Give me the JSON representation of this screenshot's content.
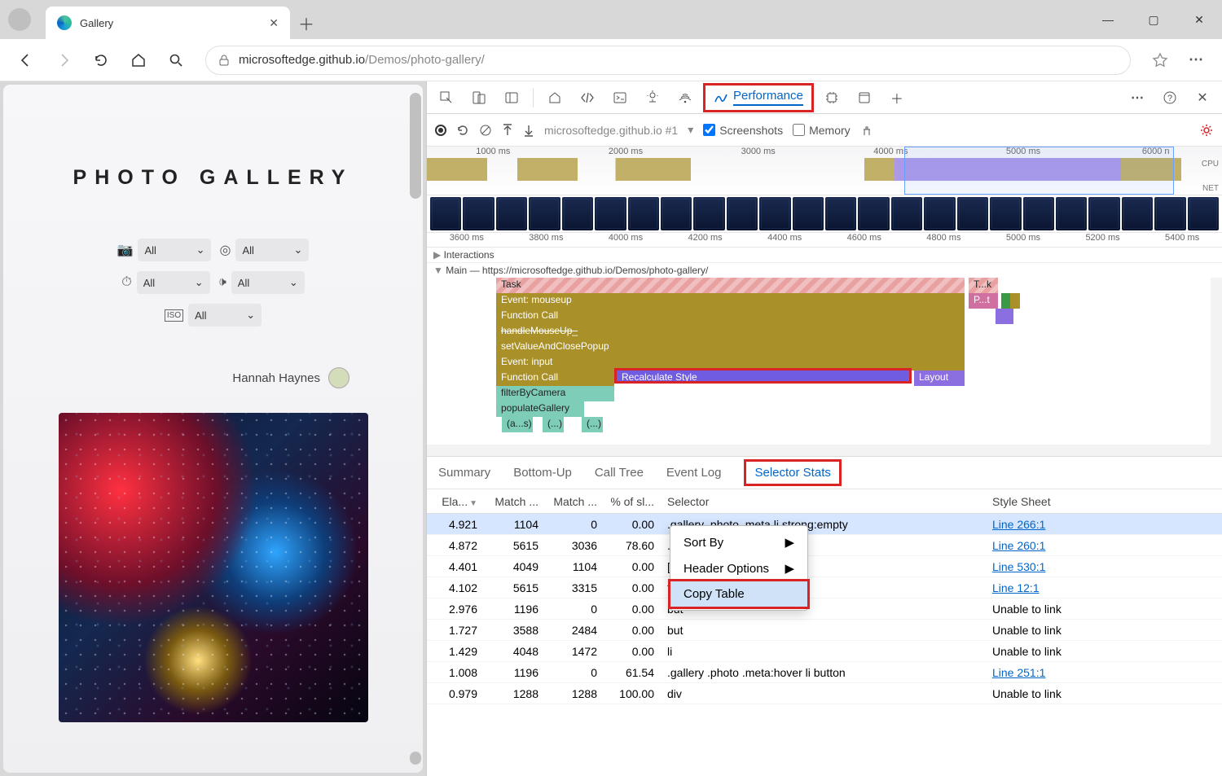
{
  "window": {
    "tab_title": "Gallery"
  },
  "addr": {
    "host": "microsoftedge.github.io",
    "path": "/Demos/photo-gallery/"
  },
  "page": {
    "title": "PHOTO GALLERY",
    "filters": [
      "All",
      "All",
      "All",
      "All",
      "All"
    ],
    "user": "Hannah Haynes"
  },
  "devtools": {
    "active_tab": "Performance",
    "perf_bar": {
      "context": "microsoftedge.github.io #1",
      "screenshots": "Screenshots",
      "memory": "Memory"
    },
    "overview_ticks": [
      "1000 ms",
      "2000 ms",
      "3000 ms",
      "4000 ms",
      "5000 ms",
      "6000 n"
    ],
    "ruler_ticks": [
      "3600 ms",
      "3800 ms",
      "4000 ms",
      "4200 ms",
      "4400 ms",
      "4600 ms",
      "4800 ms",
      "5000 ms",
      "5200 ms",
      "5400 ms"
    ],
    "interactions": "Interactions",
    "main_label": "Main — https://microsoftedge.github.io/Demos/photo-gallery/",
    "flame": {
      "task": "Task",
      "mouseup": "Event: mouseup",
      "fcall": "Function Call",
      "handle": "handleMouseUp_",
      "setval": "setValueAndClosePopup",
      "input": "Event: input",
      "fcall2": "Function Call",
      "recalc": "Recalculate Style",
      "layout": "Layout",
      "filter": "filterByCamera",
      "populate": "populateGallery",
      "anon1": "(a...s)",
      "anon2": "(...)",
      "anon3": "(...)",
      "task2": "T...k",
      "p2": "P...t"
    },
    "detail_tabs": [
      "Summary",
      "Bottom-Up",
      "Call Tree",
      "Event Log",
      "Selector Stats"
    ],
    "stats_headers": {
      "elapsed": "Ela...",
      "match_a": "Match ...",
      "match_c": "Match ...",
      "pct": "% of sl...",
      "selector": "Selector",
      "sheet": "Style Sheet"
    },
    "stats_rows": [
      {
        "elapsed": "4.921",
        "ma": "1104",
        "mc": "0",
        "pct": "0.00",
        "sel": ".gallery .photo .meta li strong:empty",
        "sheet": "Line 266:1",
        "link": true,
        "selected": true
      },
      {
        "elapsed": "4.872",
        "ma": "5615",
        "mc": "3036",
        "pct": "78.60",
        "sel": ".ga",
        "sheet": "Line 260:1",
        "link": true
      },
      {
        "elapsed": "4.401",
        "ma": "4049",
        "mc": "1104",
        "pct": "0.00",
        "sel": "[cla",
        "sheet": "Line 530:1",
        "link": true
      },
      {
        "elapsed": "4.102",
        "ma": "5615",
        "mc": "3315",
        "pct": "0.00",
        "sel": "*",
        "sheet": "Line 12:1",
        "link": true
      },
      {
        "elapsed": "2.976",
        "ma": "1196",
        "mc": "0",
        "pct": "0.00",
        "sel": "but",
        "sheet": "Unable to link",
        "link": false
      },
      {
        "elapsed": "1.727",
        "ma": "3588",
        "mc": "2484",
        "pct": "0.00",
        "sel": "but",
        "sheet": "Unable to link",
        "link": false
      },
      {
        "elapsed": "1.429",
        "ma": "4048",
        "mc": "1472",
        "pct": "0.00",
        "sel": "li",
        "sheet": "Unable to link",
        "link": false
      },
      {
        "elapsed": "1.008",
        "ma": "1196",
        "mc": "0",
        "pct": "61.54",
        "sel": ".gallery .photo .meta:hover li button",
        "sheet": "Line 251:1",
        "link": true
      },
      {
        "elapsed": "0.979",
        "ma": "1288",
        "mc": "1288",
        "pct": "100.00",
        "sel": "div",
        "sheet": "Unable to link",
        "link": false
      }
    ],
    "ctx": {
      "sort": "Sort By",
      "hdr": "Header Options",
      "copy": "Copy Table"
    }
  }
}
